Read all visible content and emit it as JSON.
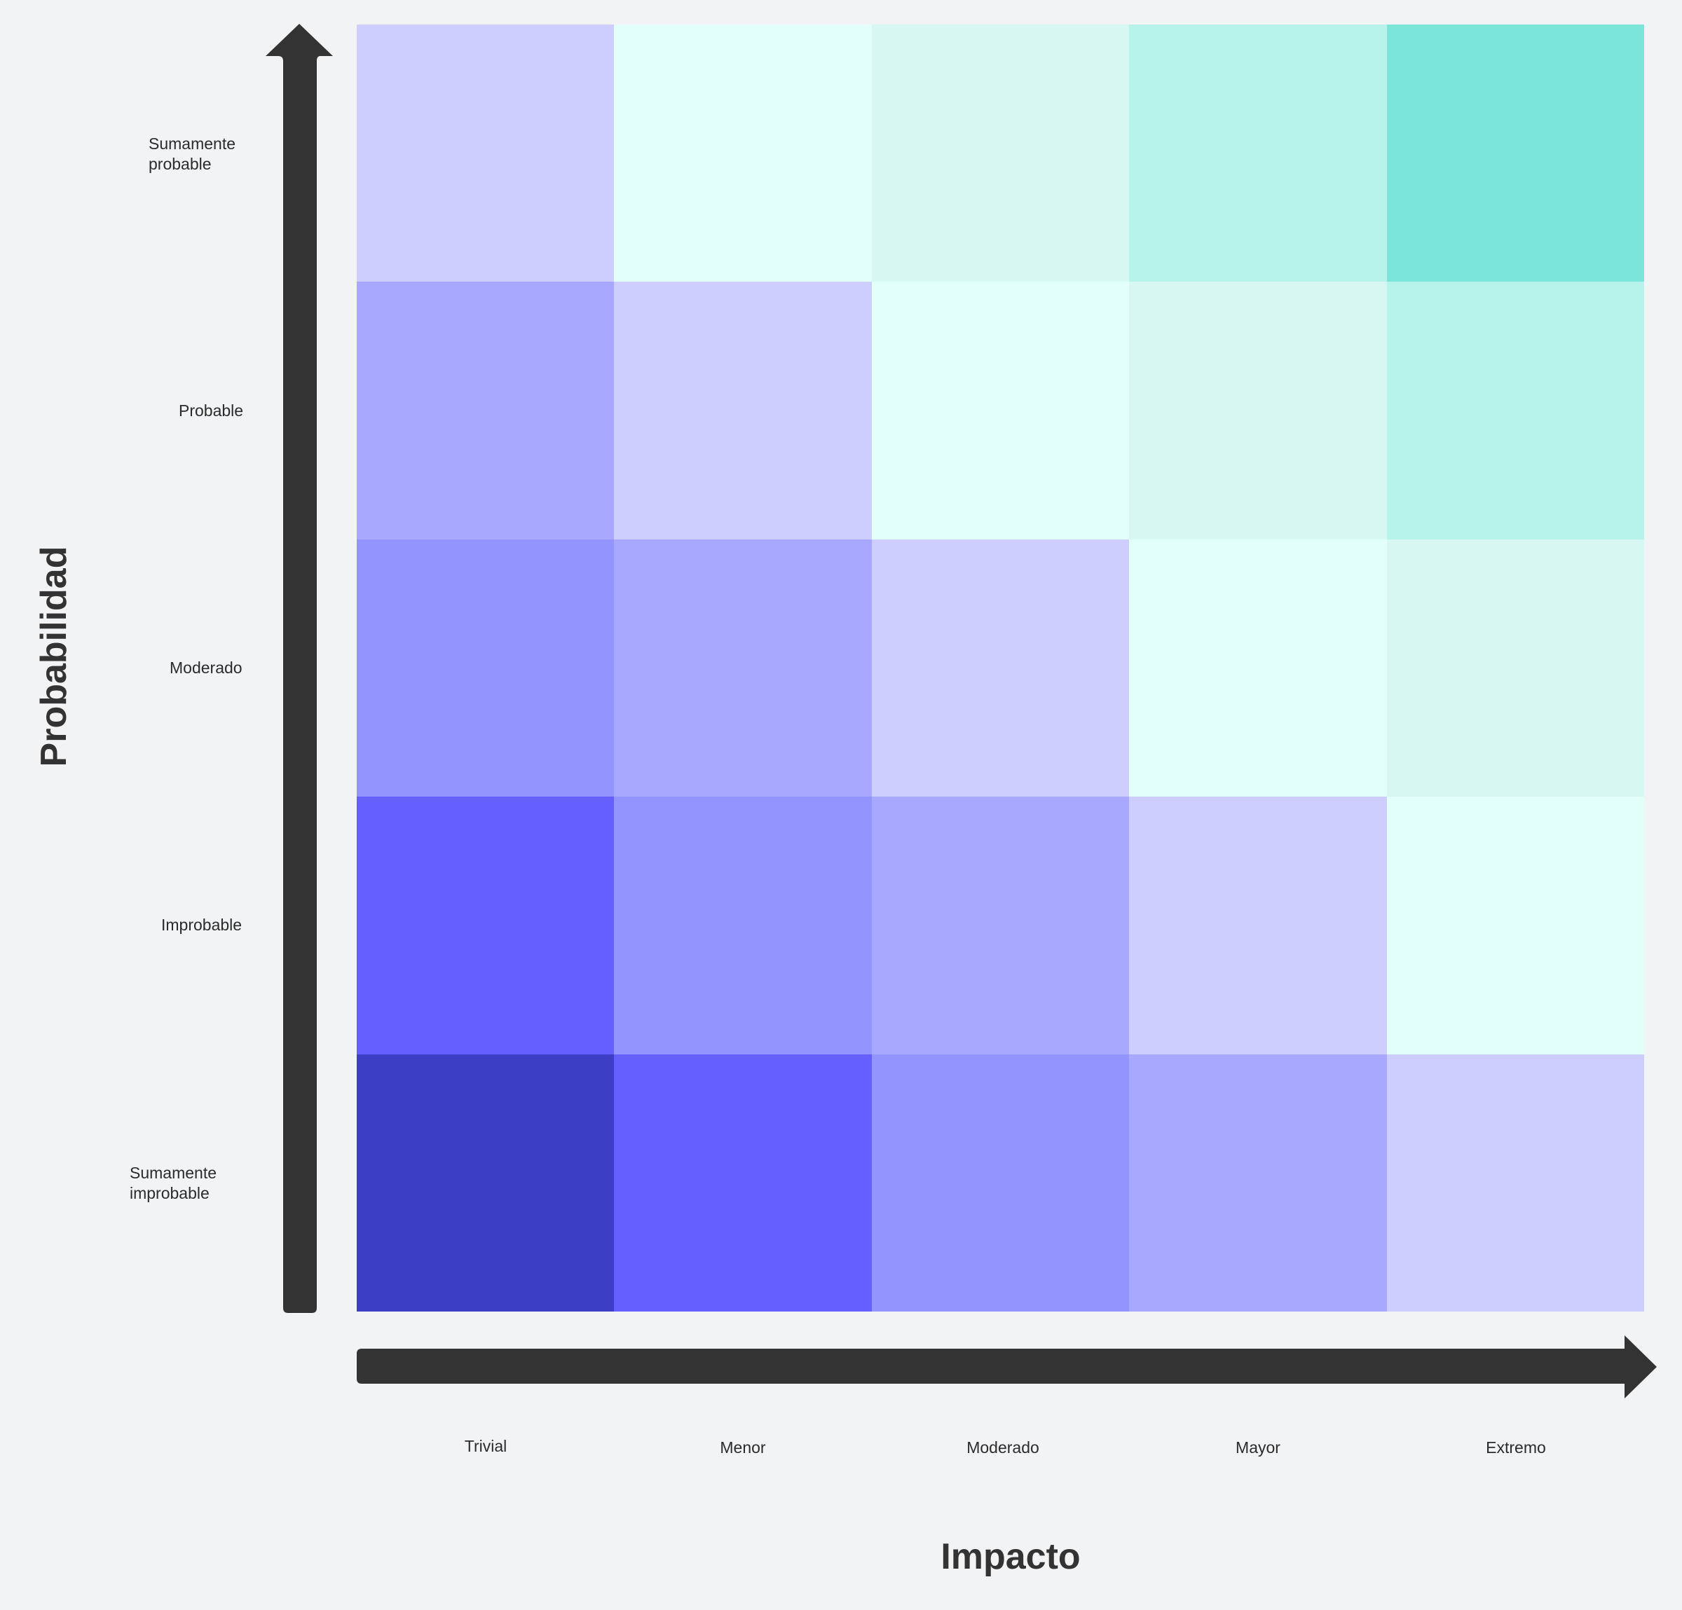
{
  "chart_data": {
    "type": "heatmap",
    "title": "",
    "xlabel": "Impacto",
    "ylabel": "Probabilidad",
    "x_categories": [
      "Trivial",
      "Menor",
      "Moderado",
      "Mayor",
      "Extremo"
    ],
    "y_categories_top_to_bottom": [
      "Sumamente\nprobable",
      "Probable",
      "Moderado",
      "Improbable",
      "Sumamente\nimprobable"
    ],
    "cell_colors_top_to_bottom": [
      [
        "#cdcdfe",
        "#e3fffa",
        "#d7f8f2",
        "#b7f2eb",
        "#7ae5d8"
      ],
      [
        "#a8a8fe",
        "#cdcdfe",
        "#e3fffa",
        "#d7f8f2",
        "#b7f2eb"
      ],
      [
        "#9494fe",
        "#a8a8fe",
        "#cdcdfe",
        "#e3fffa",
        "#d7f8f2"
      ],
      [
        "#645ffe",
        "#9494fe",
        "#a8a8fe",
        "#cdcdfe",
        "#e3fffa"
      ],
      [
        "#3c3ec6",
        "#645ffe",
        "#9494fe",
        "#a8a8fe",
        "#cdcdfe"
      ]
    ],
    "grid": false,
    "legend": "none"
  },
  "colors": {
    "background": "#f2f3f5",
    "axis_arrow": "#333333",
    "text": "#2b2b2b"
  }
}
